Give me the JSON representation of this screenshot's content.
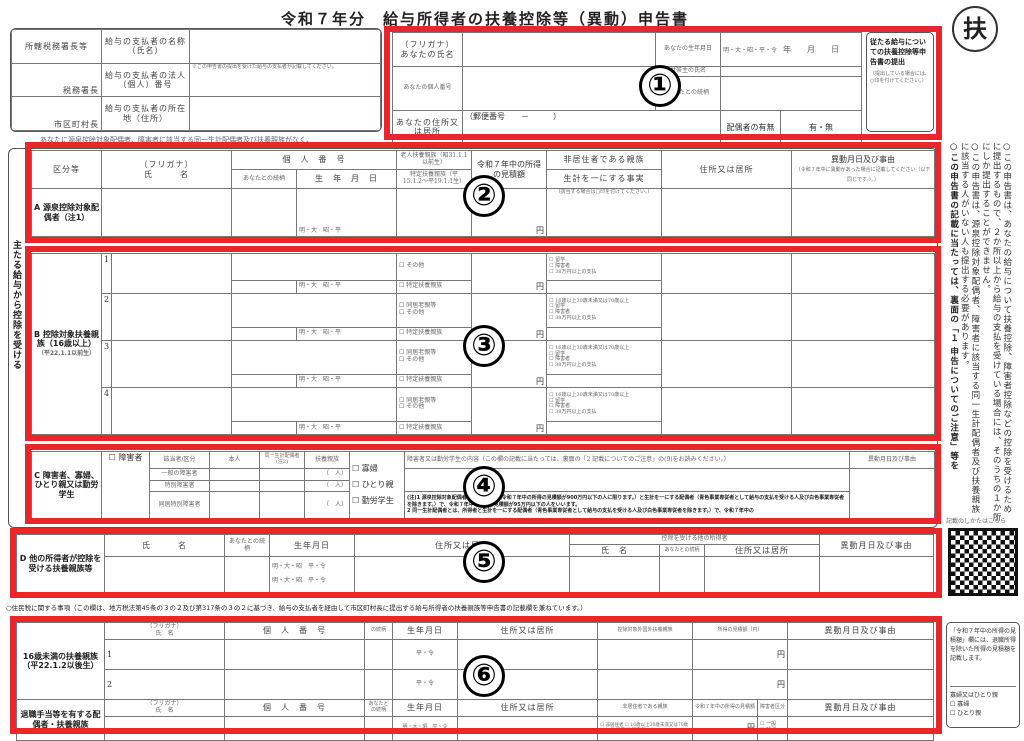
{
  "title": "令和７年分　給与所得者の扶養控除等（異動）申告書",
  "stamp": "扶",
  "header_left": {
    "office": "所轄税務署長等",
    "tax_office": "税務署長",
    "municipality": "市区町村長",
    "payer_name": "給与の支払者の名称（氏名）",
    "payer_number": "給与の支払者の法人（個人）番号",
    "payer_number_note": "※この申告書の提出を受けた給与の支払者が記載してください。",
    "payer_address": "給与の支払者の所在地（住所）"
  },
  "header_right": {
    "furigana": "（フリガナ）",
    "your_name": "あなたの氏名",
    "your_number": "あなたの個人番号",
    "your_address": "あなたの住所又は居所",
    "postal": "（郵便番号　　－　　　）",
    "birth": "あなたの生年月日",
    "era": "明・大・昭・平・令",
    "ymd": "年　　月　　日",
    "householder": "世帯主の氏名",
    "relation": "あなたとの続柄",
    "spouse": "配偶者の有無",
    "spouse_value": "有・無",
    "side_title": "従たる給与についての扶養控除等申告書の提出",
    "side_note": "（提出している場合には、○印を付けてください。）"
  },
  "note_line": "あなたに源泉控除対象配偶者、障害者に該当する同一生計配偶者及び扶養親族がなく、",
  "left_vertical": "主たる給与から控除を受ける",
  "section_a": {
    "kubun": "区分等",
    "furigana": "（フリガナ）",
    "name": "氏　　　名",
    "mynumber": "個　人　番　号",
    "relation": "あなたとの続柄",
    "birth": "生　年　月　日",
    "elderly": "老人扶養親族（昭31.1.1以前生）",
    "specific": "特定扶養親族（平15.1.2〜平19.1.1生）",
    "income": "令和７年中の所得の見積額",
    "nonresident": "非居住者である親族",
    "same_living": "生計を一にする事実",
    "check_note": "（該当する場合は□印を付けてください。）",
    "address": "住所又は居所",
    "change": "異動月日及び事由",
    "change_note": "（令和７年中に異動があった場合に記載してください（以下同じです。）。）",
    "row_label": "A 源泉控除対象配偶者（注1）",
    "era": "明・大　昭・平",
    "yen": "円"
  },
  "section_b": {
    "label": "B 控除対象扶養親族（16歳以上）",
    "sub": "（平22.1.1以前生）",
    "rows": [
      "1",
      "2",
      "3",
      "4"
    ],
    "opt_elderly": "同居老親等",
    "opt_other": "その他",
    "opt_specific": "特定扶養親族",
    "opt_age": "16歳以上30歳未満又は70歳以上",
    "opt_study": "留学",
    "opt_disabled": "障害者",
    "opt_38": "38万円以上の支払",
    "era": "明・大　昭・平",
    "yen": "円"
  },
  "section_c": {
    "label": "C 障害者、寡婦、ひとり親又は勤労学生",
    "disabled": "障害者",
    "kubun": "区分",
    "applicable": "該当者",
    "self": "本人",
    "same_spouse": "同一生計配偶者(注2)",
    "dependents": "扶養親族",
    "general": "一般の障害者",
    "special": "特別障害者",
    "cohabit": "同居特別障害者",
    "persons": "（　人）",
    "widow": "寡婦",
    "single": "ひとり親",
    "student": "勤労学生",
    "content": "障害者又は勤労学生の内容（この欄の記載に当たっては、裏面の「2 記載についてのご注意」の(9)をお読みください。）",
    "change": "異動月日及び事由",
    "note1": "(注)1 源泉控除対象配偶者とは、所得者（令和７年中の所得の見積額が900万円以下の人に限ります。）と生計を一にする配偶者（青色事業専従者として給与の支払を受ける人及び白色事業専従者を除きます。）で、令和７年中の所得の見積額が95万円以下の人をいいます。",
    "note2": "2 同一生計配偶者とは、所得者と生計を一にする配偶者（青色事業専従者として給与の支払を受ける人及び白色事業専従者を除きます。）で、令和７年中の"
  },
  "section_d": {
    "label": "D 他の所得者が控除を受ける扶養親族等",
    "name": "氏　　　名",
    "relation": "あなたとの続柄",
    "birth": "生年月日",
    "address": "住所又は居所",
    "other_earner": "控除を受ける他の所得者",
    "oname": "氏　名",
    "orelation": "あなたとの続柄",
    "oaddress": "住所又は居所",
    "change": "異動月日及び事由",
    "era": "明・大・昭　平・令"
  },
  "resident_tax_line": "○住民税に関する事項（この欄は、地方税法第45条の３の２及び第317条の３の２に基づき、給与の支払者を経由して市区町村長に提出する給与所得者の扶養親族等申告書の記載欄を兼ねています。）",
  "section_6": {
    "under16": "16歳未満の扶養親族（平22.1.2以後生）",
    "furigana": "（フリガナ）",
    "name": "氏　名",
    "mynumber": "個　人　番　号",
    "relation": "の続柄",
    "birth": "生年月日",
    "address": "住所又は居所",
    "nonresident": "控除対象外国外扶養親族",
    "income": "所得の見積額（円）",
    "change": "異動月日及び事由",
    "rows": [
      "1",
      "2"
    ],
    "era": "平・令",
    "yen": "円",
    "retire": "退職手当等を有する配偶者・扶養親族",
    "relation2": "あなたとの続柄",
    "nonres2": "非居住者である親族",
    "income2": "令和７年中の所得の見積額",
    "disab": "障害者区分",
    "general": "一般",
    "special": "特別",
    "opt1": "非居住者",
    "opt2": "16歳以上30歳未満又は70歳以上",
    "opt3": "留学",
    "opt4": "障害者",
    "opt5": "38万円以上の支払",
    "era2": "明・大・昭　平・令"
  },
  "right_column": {
    "note1": "○この申告書は、あなたの給与について扶養控除、障害者控除などの控除を受けるために提出するもので、２か所以上から給与の支払を受けている場合には、そのうちの１か所にしか提出することができません。",
    "note2": "○この申告書は、源泉控除対象配偶者、障害者に該当する同一生計配偶者及び扶養親族に該当する人がいない人も提出する必要があります。",
    "note3": "○この申告書の記載に当たっては、裏面の「１ 申告についてのご注意」等を",
    "qr_label": "記載のしかたはこちら",
    "bottom_note": "「令和７年中の所得の見積額」欄には、退職所得を除いた所得の見積額を記載します。",
    "widow_single": "寡婦又はひとり親",
    "widow": "寡婦",
    "single": "ひとり親"
  },
  "markers": [
    "①",
    "②",
    "③",
    "④",
    "⑤",
    "⑥"
  ],
  "colors": {
    "highlight": "#e8262b"
  }
}
